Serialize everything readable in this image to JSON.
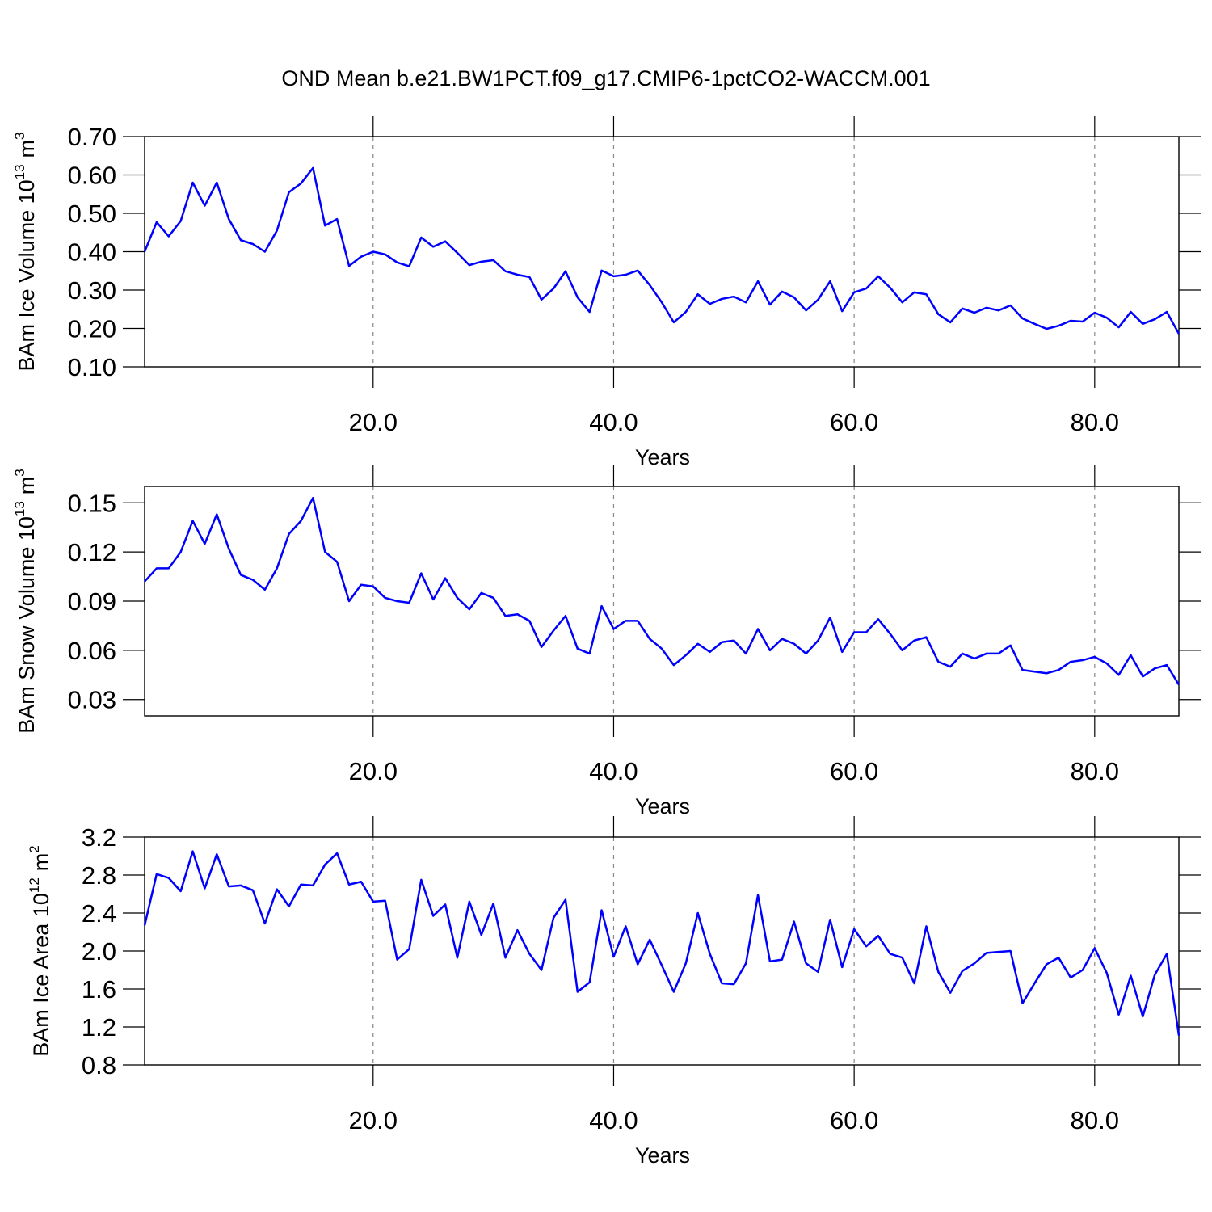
{
  "chart_data": [
    {
      "type": "line",
      "title": "OND Mean b.e21.BW1PCT.f09_g17.CMIP6-1pctCO2-WACCM.001",
      "ylabel": [
        "BAm Ice Volume 10",
        "13",
        "m",
        "3"
      ],
      "xlabel": "Years",
      "color": "#0000ff",
      "xgrid": true,
      "x": [
        1,
        2,
        3,
        4,
        5,
        6,
        7,
        8,
        9,
        10,
        11,
        12,
        13,
        14,
        15,
        16,
        17,
        18,
        19,
        20,
        21,
        22,
        23,
        24,
        25,
        26,
        27,
        28,
        29,
        30,
        31,
        32,
        33,
        34,
        35,
        36,
        37,
        38,
        39,
        40,
        41,
        42,
        43,
        44,
        45,
        46,
        47,
        48,
        49,
        50,
        51,
        52,
        53,
        54,
        55,
        56,
        57,
        58,
        59,
        60,
        61,
        62,
        63,
        64,
        65,
        66,
        67,
        68,
        69,
        70,
        71,
        72,
        73,
        74,
        75,
        76,
        77,
        78,
        79,
        80,
        81,
        82,
        83,
        84,
        85,
        86,
        87
      ],
      "values": [
        0.4,
        0.477,
        0.44,
        0.48,
        0.58,
        0.52,
        0.58,
        0.485,
        0.43,
        0.42,
        0.4,
        0.455,
        0.555,
        0.578,
        0.618,
        0.468,
        0.485,
        0.363,
        0.387,
        0.4,
        0.393,
        0.372,
        0.362,
        0.437,
        0.413,
        0.427,
        0.397,
        0.365,
        0.374,
        0.378,
        0.349,
        0.34,
        0.334,
        0.275,
        0.304,
        0.349,
        0.281,
        0.243,
        0.351,
        0.336,
        0.34,
        0.351,
        0.313,
        0.268,
        0.216,
        0.243,
        0.289,
        0.264,
        0.277,
        0.283,
        0.268,
        0.323,
        0.262,
        0.296,
        0.281,
        0.247,
        0.275,
        0.323,
        0.245,
        0.294,
        0.304,
        0.336,
        0.306,
        0.268,
        0.294,
        0.289,
        0.237,
        0.216,
        0.252,
        0.241,
        0.254,
        0.247,
        0.26,
        0.226,
        0.212,
        0.199,
        0.207,
        0.22,
        0.218,
        0.241,
        0.228,
        0.203,
        0.243,
        0.212,
        0.224,
        0.243,
        0.186
      ],
      "xlim": [
        1,
        87
      ],
      "xticks": [
        {
          "value": 20,
          "label": "20.0"
        },
        {
          "value": 40,
          "label": "40.0"
        },
        {
          "value": 60,
          "label": "60.0"
        },
        {
          "value": 80,
          "label": "80.0"
        }
      ],
      "ylim": [
        0.1,
        0.7
      ],
      "yticks": [
        {
          "value": 0.1,
          "label": "0.10"
        },
        {
          "value": 0.2,
          "label": "0.20"
        },
        {
          "value": 0.3,
          "label": "0.30"
        },
        {
          "value": 0.4,
          "label": "0.40"
        },
        {
          "value": 0.5,
          "label": "0.50"
        },
        {
          "value": 0.6,
          "label": "0.60"
        },
        {
          "value": 0.7,
          "label": "0.70"
        }
      ]
    },
    {
      "type": "line",
      "ylabel": [
        "BAm Snow Volume 10",
        "13",
        "m",
        "3"
      ],
      "xlabel": "Years",
      "color": "#0000ff",
      "xgrid": true,
      "x": [
        1,
        2,
        3,
        4,
        5,
        6,
        7,
        8,
        9,
        10,
        11,
        12,
        13,
        14,
        15,
        16,
        17,
        18,
        19,
        20,
        21,
        22,
        23,
        24,
        25,
        26,
        27,
        28,
        29,
        30,
        31,
        32,
        33,
        34,
        35,
        36,
        37,
        38,
        39,
        40,
        41,
        42,
        43,
        44,
        45,
        46,
        47,
        48,
        49,
        50,
        51,
        52,
        53,
        54,
        55,
        56,
        57,
        58,
        59,
        60,
        61,
        62,
        63,
        64,
        65,
        66,
        67,
        68,
        69,
        70,
        71,
        72,
        73,
        74,
        75,
        76,
        77,
        78,
        79,
        80,
        81,
        82,
        83,
        84,
        85,
        86,
        87
      ],
      "values": [
        0.102,
        0.11,
        0.11,
        0.12,
        0.139,
        0.125,
        0.143,
        0.122,
        0.106,
        0.103,
        0.097,
        0.11,
        0.131,
        0.139,
        0.153,
        0.12,
        0.114,
        0.09,
        0.1,
        0.099,
        0.092,
        0.09,
        0.089,
        0.107,
        0.091,
        0.104,
        0.092,
        0.085,
        0.095,
        0.092,
        0.081,
        0.082,
        0.078,
        0.062,
        0.072,
        0.081,
        0.061,
        0.058,
        0.087,
        0.073,
        0.078,
        0.078,
        0.067,
        0.061,
        0.051,
        0.057,
        0.064,
        0.059,
        0.065,
        0.066,
        0.058,
        0.073,
        0.06,
        0.067,
        0.064,
        0.058,
        0.066,
        0.08,
        0.059,
        0.071,
        0.071,
        0.079,
        0.07,
        0.06,
        0.066,
        0.068,
        0.053,
        0.05,
        0.058,
        0.055,
        0.058,
        0.058,
        0.063,
        0.048,
        0.047,
        0.046,
        0.048,
        0.053,
        0.054,
        0.056,
        0.052,
        0.045,
        0.057,
        0.044,
        0.049,
        0.051,
        0.039
      ],
      "xlim": [
        1,
        87
      ],
      "xticks": [
        {
          "value": 20,
          "label": "20.0"
        },
        {
          "value": 40,
          "label": "40.0"
        },
        {
          "value": 60,
          "label": "60.0"
        },
        {
          "value": 80,
          "label": "80.0"
        }
      ],
      "ylim": [
        0.02,
        0.16
      ],
      "yticks": [
        0.03,
        0.06,
        0.09,
        0.12,
        0.15
      ]
    },
    {
      "type": "line",
      "ylabel": [
        "BAm Ice Area 10",
        "12",
        "m",
        "2"
      ],
      "xlabel": "Years",
      "color": "#0000ff",
      "xgrid": true,
      "x": [
        1,
        2,
        3,
        4,
        5,
        6,
        7,
        8,
        9,
        10,
        11,
        12,
        13,
        14,
        15,
        16,
        17,
        18,
        19,
        20,
        21,
        22,
        23,
        24,
        25,
        26,
        27,
        28,
        29,
        30,
        31,
        32,
        33,
        34,
        35,
        36,
        37,
        38,
        39,
        40,
        41,
        42,
        43,
        44,
        45,
        46,
        47,
        48,
        49,
        50,
        51,
        52,
        53,
        54,
        55,
        56,
        57,
        58,
        59,
        60,
        61,
        62,
        63,
        64,
        65,
        66,
        67,
        68,
        69,
        70,
        71,
        72,
        73,
        74,
        75,
        76,
        77,
        78,
        79,
        80,
        81,
        82,
        83,
        84,
        85,
        86,
        87
      ],
      "values": [
        2.27,
        2.81,
        2.77,
        2.63,
        3.05,
        2.66,
        3.02,
        2.68,
        2.69,
        2.64,
        2.29,
        2.65,
        2.47,
        2.7,
        2.69,
        2.91,
        3.03,
        2.7,
        2.73,
        2.52,
        2.53,
        1.91,
        2.02,
        2.75,
        2.37,
        2.49,
        1.93,
        2.52,
        2.17,
        2.5,
        1.93,
        2.22,
        1.97,
        1.8,
        2.35,
        2.54,
        1.57,
        1.67,
        2.43,
        1.94,
        2.26,
        1.86,
        2.12,
        1.85,
        1.57,
        1.87,
        2.4,
        1.97,
        1.66,
        1.65,
        1.87,
        2.59,
        1.89,
        1.91,
        2.31,
        1.87,
        1.78,
        2.33,
        1.83,
        2.23,
        2.05,
        2.16,
        1.97,
        1.93,
        1.66,
        2.26,
        1.78,
        1.56,
        1.79,
        1.87,
        1.98,
        1.99,
        2.0,
        1.45,
        1.66,
        1.86,
        1.93,
        1.72,
        1.8,
        2.03,
        1.77,
        1.33,
        1.74,
        1.31,
        1.75,
        1.97,
        1.11
      ],
      "xlim": [
        1,
        87
      ],
      "xticks": [
        {
          "value": 20,
          "label": "20.0"
        },
        {
          "value": 40,
          "label": "40.0"
        },
        {
          "value": 60,
          "label": "60.0"
        },
        {
          "value": 80,
          "label": "80.0"
        }
      ],
      "ylim": [
        0.8,
        3.2
      ],
      "yticks": [
        0.8,
        1.2,
        1.6,
        {
          "value": 2.0,
          "label": "2.0"
        },
        2.4,
        2.8,
        3.2
      ]
    }
  ]
}
